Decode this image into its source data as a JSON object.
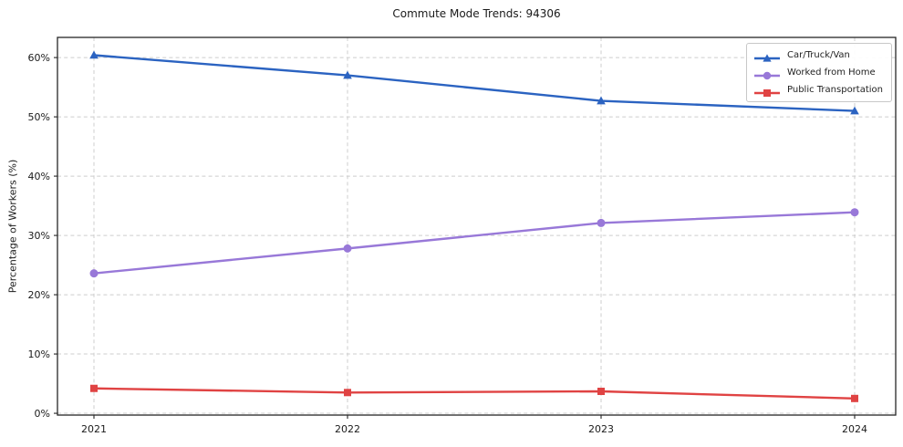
{
  "chart_data": {
    "type": "line",
    "title": "Commute Mode Trends: 94306",
    "ylabel": "Percentage of Workers (%)",
    "xlabel": "",
    "categories": [
      "2021",
      "2022",
      "2023",
      "2024"
    ],
    "series": [
      {
        "name": "Car/Truck/Van",
        "color": "#2b63c1",
        "marker": "triangle-up",
        "values": [
          60.4,
          57.0,
          52.7,
          51.0
        ]
      },
      {
        "name": "Worked from Home",
        "color": "#9878d8",
        "marker": "circle",
        "values": [
          23.6,
          27.8,
          32.1,
          33.9
        ]
      },
      {
        "name": "Public Transportation",
        "color": "#e04343",
        "marker": "square",
        "values": [
          4.2,
          3.5,
          3.7,
          2.5
        ]
      }
    ],
    "yticks": {
      "values": [
        0,
        10,
        20,
        30,
        40,
        50,
        60
      ],
      "labels": [
        "0%",
        "10%",
        "20%",
        "30%",
        "40%",
        "50%",
        "60%"
      ]
    },
    "ylim": [
      -0.3,
      63.4
    ],
    "grid": "dashed-both",
    "legend_position": "upper-right",
    "colors": {
      "spine": "#262626",
      "grid": "#cdcdcd",
      "tick_text": "#1a1a1a"
    }
  }
}
